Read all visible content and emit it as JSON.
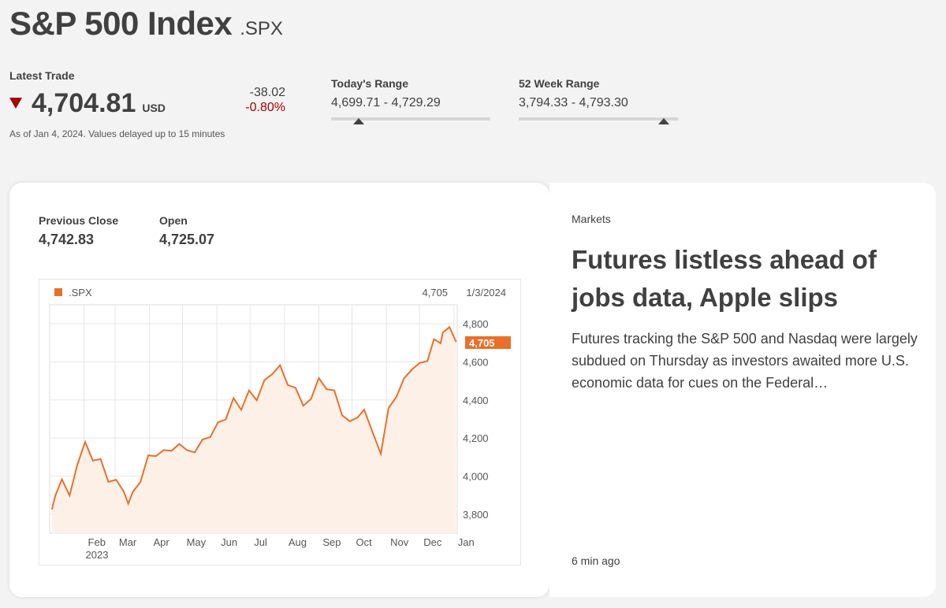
{
  "header": {
    "title": "S&P 500 Index",
    "ticker": ".SPX"
  },
  "quote": {
    "latest_label": "Latest Trade",
    "price": "4,704.81",
    "currency": "USD",
    "change_abs": "-38.02",
    "change_pct": "-0.80%",
    "direction": "down",
    "as_of": "As of Jan 4, 2024. Values delayed up to 15 minutes"
  },
  "todays_range": {
    "label": "Today's Range",
    "values": "4,699.71 - 4,729.29",
    "low": 4699.71,
    "high": 4729.29,
    "marker_value": 4704.81
  },
  "week52_range": {
    "label": "52 Week Range",
    "values": "3,794.33 - 4,793.30",
    "low": 3794.33,
    "high": 4793.3,
    "marker_value": 4704.81
  },
  "stats": {
    "prev_close_label": "Previous Close",
    "prev_close": "4,742.83",
    "open_label": "Open",
    "open": "4,725.07"
  },
  "colors": {
    "accent": "#e8702a",
    "down": "#a60000",
    "fill": "#fdf0e6"
  },
  "chart_data": {
    "type": "area",
    "legend": ".SPX",
    "header_value": "4,705",
    "header_date": "1/3/2024",
    "last_label": "4,705",
    "x_ticks": [
      "Feb",
      "Mar",
      "Apr",
      "May",
      "Jun",
      "Jul",
      "Aug",
      "Sep",
      "Oct",
      "Nov",
      "Dec",
      "Jan"
    ],
    "year_label": "2023",
    "y_ticks": [
      "4,800",
      "4,600",
      "4,400",
      "4,200",
      "4,000",
      "3,800"
    ],
    "ylim": [
      3700,
      4900
    ],
    "x": [
      "2023-01-03",
      "2023-01-06",
      "2023-01-12",
      "2023-01-19",
      "2023-01-26",
      "2023-02-02",
      "2023-02-09",
      "2023-02-16",
      "2023-02-23",
      "2023-03-02",
      "2023-03-09",
      "2023-03-13",
      "2023-03-17",
      "2023-03-24",
      "2023-03-31",
      "2023-04-07",
      "2023-04-14",
      "2023-04-21",
      "2023-04-28",
      "2023-05-05",
      "2023-05-12",
      "2023-05-19",
      "2023-05-26",
      "2023-06-02",
      "2023-06-09",
      "2023-06-16",
      "2023-06-23",
      "2023-06-30",
      "2023-07-07",
      "2023-07-14",
      "2023-07-21",
      "2023-07-28",
      "2023-08-04",
      "2023-08-11",
      "2023-08-18",
      "2023-08-25",
      "2023-09-01",
      "2023-09-08",
      "2023-09-15",
      "2023-09-22",
      "2023-09-29",
      "2023-10-06",
      "2023-10-12",
      "2023-10-20",
      "2023-10-27",
      "2023-11-03",
      "2023-11-10",
      "2023-11-17",
      "2023-11-24",
      "2023-12-01",
      "2023-12-08",
      "2023-12-14",
      "2023-12-20",
      "2023-12-22",
      "2023-12-28",
      "2024-01-03"
    ],
    "values": [
      3824,
      3895,
      3983,
      3898,
      4060,
      4179,
      4081,
      4090,
      3970,
      3981,
      3918,
      3855,
      3917,
      3970,
      4109,
      4105,
      4137,
      4133,
      4169,
      4136,
      4124,
      4192,
      4205,
      4282,
      4298,
      4410,
      4348,
      4450,
      4398,
      4505,
      4536,
      4582,
      4478,
      4464,
      4370,
      4406,
      4515,
      4457,
      4450,
      4320,
      4288,
      4308,
      4349,
      4224,
      4117,
      4358,
      4415,
      4514,
      4559,
      4594,
      4604,
      4719,
      4698,
      4754,
      4783,
      4705
    ]
  },
  "news": {
    "category": "Markets",
    "title": "Futures listless ahead of jobs data, Apple slips",
    "body": "Futures tracking the S&P 500 and Nasdaq were largely subdued on Thursday as investors awaited more U.S. economic data for cues on the Federal…",
    "time": "6 min ago"
  }
}
